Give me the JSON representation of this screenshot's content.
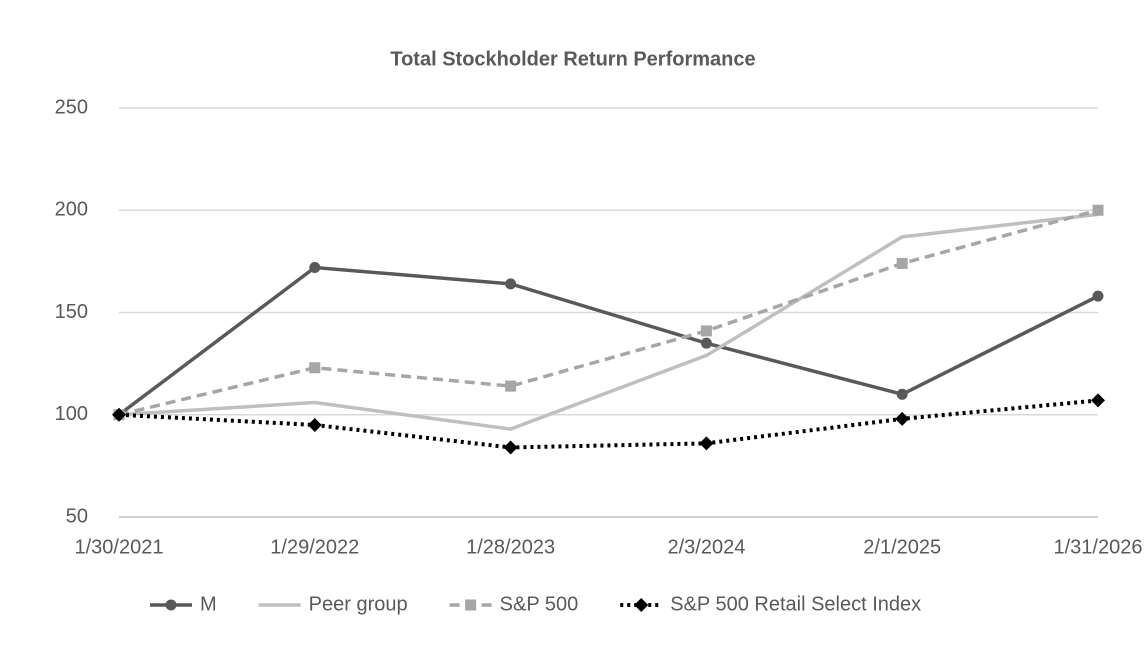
{
  "chart_data": {
    "type": "line",
    "title": "Total Stockholder Return Performance",
    "categories": [
      "1/30/2021",
      "1/29/2022",
      "1/28/2023",
      "2/3/2024",
      "2/1/2025",
      "1/31/2026"
    ],
    "series": [
      {
        "name": "M",
        "color": "#595959",
        "dash": "solid",
        "marker": "circle",
        "values": [
          100,
          172,
          164,
          135,
          110,
          158
        ]
      },
      {
        "name": "Peer group",
        "color": "#bfbfbf",
        "dash": "solid",
        "marker": "none",
        "values": [
          100,
          106,
          93,
          129,
          187,
          198
        ]
      },
      {
        "name": "S&P 500",
        "color": "#a6a6a6",
        "dash": "dashed",
        "marker": "square",
        "values": [
          100,
          123,
          114,
          141,
          174,
          200
        ]
      },
      {
        "name": "S&P 500 Retail Select Index",
        "color": "#000000",
        "dash": "dotted",
        "marker": "diamond",
        "values": [
          100,
          95,
          84,
          86,
          98,
          107
        ]
      }
    ],
    "ylim": [
      50,
      250
    ],
    "yticks": [
      50,
      100,
      150,
      200,
      250
    ],
    "grid": true,
    "legend": "bottom"
  }
}
